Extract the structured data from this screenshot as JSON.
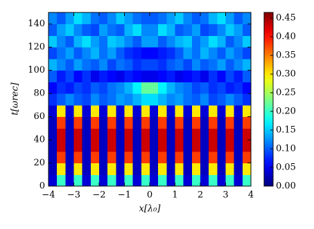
{
  "chart_data": {
    "type": "heatmap",
    "x_label": "x[λ₀]",
    "y_label": "t[ωrec]",
    "xlim": [
      -4,
      4
    ],
    "ylim": [
      0,
      150
    ],
    "xticks": [
      {
        "value": -4,
        "label": "−4"
      },
      {
        "value": -3,
        "label": "−3"
      },
      {
        "value": -2,
        "label": "−2"
      },
      {
        "value": -1,
        "label": "−1"
      },
      0,
      1,
      2,
      3,
      4
    ],
    "yticks": [
      0,
      20,
      40,
      60,
      80,
      100,
      120,
      140
    ],
    "colormap": "jet",
    "clim": [
      0,
      0.465
    ],
    "cticks": [
      {
        "value": 0,
        "label": "0.00"
      },
      0.05,
      {
        "value": 0.1,
        "label": "0.10"
      },
      0.15,
      {
        "value": 0.2,
        "label": "0.20"
      },
      0.25,
      {
        "value": 0.3,
        "label": "0.30"
      },
      0.35,
      {
        "value": 0.4,
        "label": "0.40"
      },
      0.45
    ],
    "z": [
      [
        0.04,
        0.2,
        0.04,
        0.2,
        0.04,
        0.2,
        0.04,
        0.2,
        0.04,
        0.2,
        0.04,
        0.2,
        0.04,
        0.2,
        0.04,
        0.2,
        0.04,
        0.2,
        0.04,
        0.2,
        0.04,
        0.2,
        0.04,
        0.2
      ],
      [
        0.03,
        0.3,
        0.03,
        0.3,
        0.03,
        0.3,
        0.03,
        0.3,
        0.03,
        0.3,
        0.03,
        0.3,
        0.03,
        0.3,
        0.03,
        0.3,
        0.03,
        0.3,
        0.03,
        0.3,
        0.03,
        0.3,
        0.03,
        0.3
      ],
      [
        0.03,
        0.38,
        0.03,
        0.38,
        0.03,
        0.38,
        0.03,
        0.38,
        0.03,
        0.38,
        0.03,
        0.38,
        0.03,
        0.38,
        0.03,
        0.38,
        0.03,
        0.38,
        0.03,
        0.38,
        0.03,
        0.38,
        0.03,
        0.38
      ],
      [
        0.03,
        0.43,
        0.03,
        0.43,
        0.03,
        0.43,
        0.03,
        0.43,
        0.03,
        0.43,
        0.03,
        0.43,
        0.03,
        0.43,
        0.03,
        0.43,
        0.03,
        0.43,
        0.03,
        0.43,
        0.03,
        0.43,
        0.03,
        0.43
      ],
      [
        0.03,
        0.43,
        0.03,
        0.43,
        0.03,
        0.43,
        0.03,
        0.43,
        0.03,
        0.43,
        0.03,
        0.43,
        0.03,
        0.43,
        0.03,
        0.43,
        0.03,
        0.43,
        0.03,
        0.43,
        0.03,
        0.43,
        0.03,
        0.43
      ],
      [
        0.03,
        0.38,
        0.03,
        0.38,
        0.03,
        0.38,
        0.03,
        0.38,
        0.03,
        0.38,
        0.03,
        0.38,
        0.03,
        0.38,
        0.03,
        0.38,
        0.03,
        0.38,
        0.03,
        0.38,
        0.03,
        0.38,
        0.03,
        0.38
      ],
      [
        0.04,
        0.3,
        0.04,
        0.3,
        0.04,
        0.3,
        0.04,
        0.3,
        0.04,
        0.3,
        0.04,
        0.3,
        0.04,
        0.3,
        0.04,
        0.3,
        0.04,
        0.3,
        0.04,
        0.3,
        0.04,
        0.3,
        0.04,
        0.3
      ],
      [
        0.08,
        0.1,
        0.12,
        0.1,
        0.09,
        0.12,
        0.1,
        0.11,
        0.13,
        0.12,
        0.14,
        0.16,
        0.16,
        0.14,
        0.12,
        0.13,
        0.11,
        0.1,
        0.12,
        0.09,
        0.1,
        0.12,
        0.1,
        0.08
      ],
      [
        0.06,
        0.08,
        0.07,
        0.09,
        0.08,
        0.1,
        0.09,
        0.11,
        0.12,
        0.14,
        0.17,
        0.22,
        0.22,
        0.17,
        0.14,
        0.12,
        0.11,
        0.09,
        0.1,
        0.08,
        0.09,
        0.07,
        0.08,
        0.06
      ],
      [
        0.1,
        0.07,
        0.09,
        0.06,
        0.08,
        0.05,
        0.07,
        0.06,
        0.05,
        0.07,
        0.06,
        0.05,
        0.05,
        0.06,
        0.07,
        0.05,
        0.06,
        0.07,
        0.05,
        0.08,
        0.06,
        0.09,
        0.07,
        0.1
      ],
      [
        0.14,
        0.12,
        0.1,
        0.13,
        0.11,
        0.1,
        0.12,
        0.09,
        0.11,
        0.1,
        0.08,
        0.09,
        0.09,
        0.08,
        0.1,
        0.11,
        0.09,
        0.12,
        0.1,
        0.11,
        0.13,
        0.1,
        0.12,
        0.14
      ],
      [
        0.09,
        0.11,
        0.13,
        0.1,
        0.12,
        0.14,
        0.11,
        0.13,
        0.1,
        0.08,
        0.07,
        0.06,
        0.06,
        0.07,
        0.08,
        0.1,
        0.13,
        0.11,
        0.14,
        0.12,
        0.1,
        0.13,
        0.11,
        0.09
      ],
      [
        0.15,
        0.12,
        0.1,
        0.14,
        0.16,
        0.13,
        0.11,
        0.15,
        0.14,
        0.12,
        0.1,
        0.13,
        0.13,
        0.1,
        0.12,
        0.14,
        0.15,
        0.11,
        0.13,
        0.16,
        0.14,
        0.1,
        0.12,
        0.15
      ],
      [
        0.1,
        0.13,
        0.15,
        0.12,
        0.1,
        0.09,
        0.13,
        0.11,
        0.1,
        0.14,
        0.16,
        0.12,
        0.12,
        0.16,
        0.14,
        0.1,
        0.11,
        0.13,
        0.09,
        0.1,
        0.12,
        0.15,
        0.13,
        0.1
      ],
      [
        0.12,
        0.1,
        0.13,
        0.16,
        0.14,
        0.11,
        0.1,
        0.12,
        0.15,
        0.13,
        0.11,
        0.1,
        0.1,
        0.11,
        0.13,
        0.15,
        0.12,
        0.1,
        0.11,
        0.14,
        0.16,
        0.13,
        0.1,
        0.12
      ]
    ]
  }
}
